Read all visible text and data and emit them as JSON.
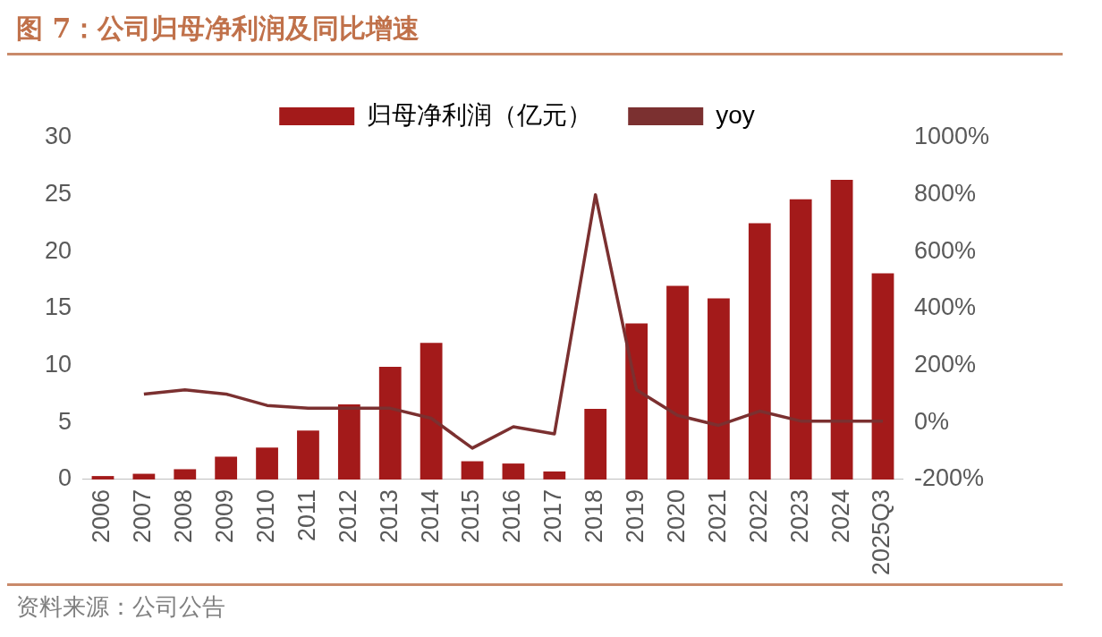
{
  "chart_data": {
    "type": "bar",
    "title": "图 7：公司归母净利润及同比增速",
    "categories": [
      "2006",
      "2007",
      "2008",
      "2009",
      "2010",
      "2011",
      "2012",
      "2013",
      "2014",
      "2015",
      "2016",
      "2017",
      "2018",
      "2019",
      "2020",
      "2021",
      "2022",
      "2023",
      "2024",
      "2025Q3"
    ],
    "series": [
      {
        "name": "归母净利润（亿元）",
        "color": "#a31a1a",
        "values": [
          0.3,
          0.5,
          0.9,
          2.0,
          2.8,
          4.3,
          6.6,
          9.9,
          12.0,
          1.6,
          1.4,
          0.7,
          6.2,
          13.7,
          17.0,
          15.9,
          22.5,
          24.6,
          26.3,
          18.1
        ]
      },
      {
        "name": "yoy",
        "type": "line",
        "axis": "y2",
        "color": "#7b3030",
        "values": [
          null,
          100,
          115,
          100,
          60,
          50,
          50,
          50,
          15,
          -90,
          -15,
          -40,
          800,
          115,
          25,
          -10,
          40,
          5,
          5,
          5
        ]
      }
    ],
    "ylim": [
      0,
      30
    ],
    "yticks": [
      0,
      5,
      10,
      15,
      20,
      25,
      30
    ],
    "y2lim": [
      -200,
      1000
    ],
    "y2ticks": [
      {
        "value": -200,
        "label": "-200%"
      },
      {
        "value": 0,
        "label": "0%"
      },
      {
        "value": 200,
        "label": "200%"
      },
      {
        "value": 400,
        "label": "400%"
      },
      {
        "value": 600,
        "label": "600%"
      },
      {
        "value": 800,
        "label": "800%"
      },
      {
        "value": 1000,
        "label": "1000%"
      }
    ],
    "grid": false,
    "legend": "top",
    "marker": "none",
    "line_style": "solid",
    "annotations": [
      "资料来源：公司公告"
    ]
  }
}
